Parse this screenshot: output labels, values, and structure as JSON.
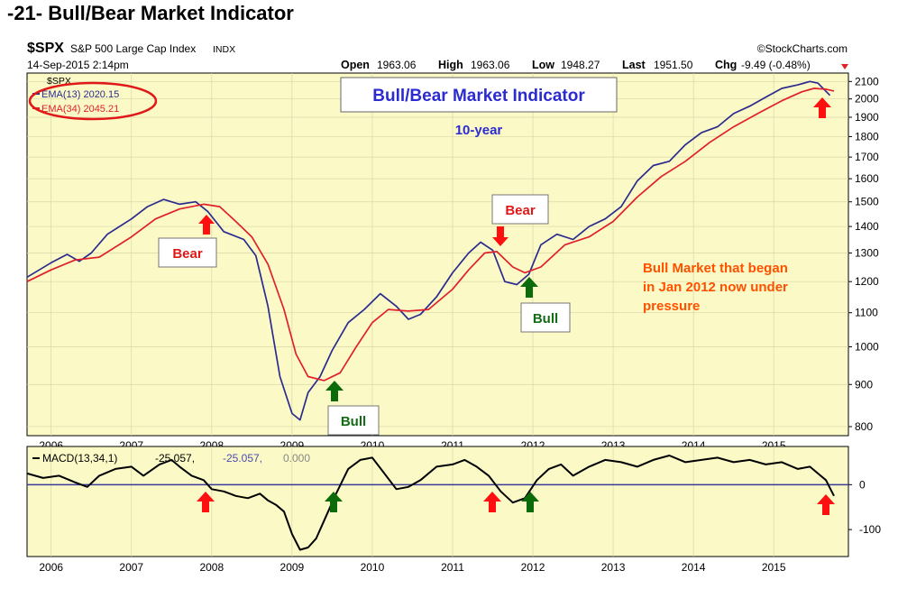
{
  "page_title": "-21- Bull/Bear Market Indicator",
  "header": {
    "symbol": "$SPX",
    "name": "S&P 500 Large Cap Index",
    "exchange": "INDX",
    "date": "14-Sep-2015 2:14pm",
    "brand": "©StockCharts.com",
    "open_label": "Open",
    "open_value": "1963.06",
    "high_label": "High",
    "high_value": "1963.06",
    "low_label": "Low",
    "low_value": "1948.27",
    "last_label": "Last",
    "last_value": "1951.50",
    "chg_label": "Chg",
    "chg_value": "-9.49 (-0.48%)"
  },
  "legend": {
    "symbol": "$SPX",
    "ema13": "EMA(13) 2020.15",
    "ema34": "EMA(34) 2045.21"
  },
  "annotations": {
    "title_box": "Bull/Bear Market Indicator",
    "subtitle": "10-year",
    "bear1": "Bear",
    "bear2": "Bear",
    "bull1": "Bull",
    "bull2": "Bull",
    "note_line1": "Bull Market that began",
    "note_line2": "in Jan 2012 now under",
    "note_line3": "pressure"
  },
  "macd_legend": {
    "label": "MACD(13,34,1)",
    "value1": "-25.057,",
    "value2": "-25.057,",
    "value3": "0.000"
  },
  "colors": {
    "panel_bg": "#fbfac7",
    "ema13": "#2b2b8f",
    "ema34": "#e0202a",
    "macd": "#000000",
    "zero_line": "#3a3a9a",
    "title_box_text": "#2b2bd0",
    "bear_text": "#e01818",
    "bull_text": "#136b13",
    "note_text": "#ff5000",
    "up_arrow_red": "#ff1010",
    "up_arrow_green": "#0b6b0b"
  },
  "chart_data": [
    {
      "type": "line",
      "scale": "log",
      "ylim": [
        780,
        2150
      ],
      "yticks": [
        800,
        900,
        1000,
        1100,
        1200,
        1300,
        1400,
        1500,
        1600,
        1700,
        1800,
        1900,
        2000,
        2100
      ],
      "xticks": [
        "2006",
        "2007",
        "2008",
        "2009",
        "2010",
        "2011",
        "2012",
        "2013",
        "2014",
        "2015"
      ],
      "series": [
        {
          "name": "EMA(13)",
          "x": [
            2005.7,
            2006.0,
            2006.2,
            2006.35,
            2006.5,
            2006.7,
            2007.0,
            2007.2,
            2007.4,
            2007.6,
            2007.8,
            2007.95,
            2008.15,
            2008.4,
            2008.55,
            2008.7,
            2008.85,
            2009.0,
            2009.1,
            2009.2,
            2009.35,
            2009.5,
            2009.7,
            2009.9,
            2010.1,
            2010.3,
            2010.45,
            2010.6,
            2010.8,
            2011.0,
            2011.2,
            2011.35,
            2011.5,
            2011.65,
            2011.8,
            2011.95,
            2012.1,
            2012.3,
            2012.5,
            2012.7,
            2012.9,
            2013.1,
            2013.3,
            2013.5,
            2013.7,
            2013.9,
            2014.1,
            2014.3,
            2014.5,
            2014.7,
            2014.9,
            2015.1,
            2015.3,
            2015.45,
            2015.55,
            2015.7
          ],
          "values": [
            1215,
            1265,
            1295,
            1270,
            1300,
            1370,
            1430,
            1480,
            1510,
            1490,
            1500,
            1460,
            1380,
            1350,
            1290,
            1120,
            920,
            830,
            815,
            880,
            920,
            990,
            1070,
            1110,
            1160,
            1120,
            1080,
            1095,
            1150,
            1230,
            1300,
            1340,
            1310,
            1200,
            1190,
            1225,
            1330,
            1370,
            1350,
            1400,
            1430,
            1480,
            1590,
            1660,
            1680,
            1760,
            1820,
            1850,
            1920,
            1960,
            2010,
            2060,
            2080,
            2100,
            2090,
            2020
          ]
        },
        {
          "name": "EMA(34)",
          "x": [
            2005.7,
            2006.0,
            2006.3,
            2006.6,
            2007.0,
            2007.3,
            2007.6,
            2007.9,
            2008.1,
            2008.3,
            2008.5,
            2008.7,
            2008.9,
            2009.05,
            2009.2,
            2009.4,
            2009.6,
            2009.8,
            2010.0,
            2010.2,
            2010.45,
            2010.7,
            2011.0,
            2011.2,
            2011.4,
            2011.55,
            2011.75,
            2011.9,
            2012.1,
            2012.4,
            2012.7,
            2013.0,
            2013.3,
            2013.6,
            2013.9,
            2014.2,
            2014.5,
            2014.8,
            2015.1,
            2015.35,
            2015.5,
            2015.65,
            2015.75
          ],
          "values": [
            1200,
            1240,
            1275,
            1285,
            1360,
            1430,
            1470,
            1490,
            1480,
            1420,
            1360,
            1260,
            1110,
            980,
            920,
            910,
            930,
            1000,
            1070,
            1110,
            1105,
            1110,
            1175,
            1240,
            1300,
            1305,
            1250,
            1230,
            1250,
            1330,
            1360,
            1420,
            1520,
            1610,
            1680,
            1770,
            1850,
            1920,
            1990,
            2040,
            2060,
            2055,
            2045
          ]
        }
      ]
    },
    {
      "type": "line",
      "name": "MACD(13,34,1)",
      "ylim": [
        -160,
        85
      ],
      "yticks": [
        -100,
        0
      ],
      "xticks": [
        "2006",
        "2007",
        "2008",
        "2009",
        "2010",
        "2011",
        "2012",
        "2013",
        "2014",
        "2015"
      ],
      "x": [
        2005.7,
        2005.9,
        2006.1,
        2006.3,
        2006.45,
        2006.6,
        2006.8,
        2007.0,
        2007.15,
        2007.35,
        2007.5,
        2007.6,
        2007.75,
        2007.9,
        2008.0,
        2008.15,
        2008.3,
        2008.45,
        2008.6,
        2008.7,
        2008.8,
        2008.9,
        2009.0,
        2009.1,
        2009.2,
        2009.3,
        2009.4,
        2009.55,
        2009.7,
        2009.85,
        2010.0,
        2010.15,
        2010.3,
        2010.45,
        2010.6,
        2010.8,
        2011.0,
        2011.15,
        2011.3,
        2011.45,
        2011.6,
        2011.75,
        2011.9,
        2012.05,
        2012.2,
        2012.35,
        2012.5,
        2012.7,
        2012.9,
        2013.1,
        2013.3,
        2013.5,
        2013.7,
        2013.9,
        2014.1,
        2014.3,
        2014.5,
        2014.7,
        2014.9,
        2015.1,
        2015.3,
        2015.45,
        2015.55,
        2015.65,
        2015.75
      ],
      "values": [
        25,
        15,
        20,
        5,
        -5,
        20,
        35,
        40,
        20,
        45,
        55,
        40,
        20,
        10,
        -10,
        -15,
        -25,
        -30,
        -20,
        -35,
        -45,
        -60,
        -110,
        -145,
        -140,
        -120,
        -80,
        -20,
        35,
        55,
        60,
        25,
        -10,
        -5,
        10,
        40,
        45,
        55,
        40,
        20,
        -15,
        -40,
        -30,
        10,
        35,
        45,
        20,
        40,
        55,
        50,
        40,
        55,
        65,
        50,
        55,
        60,
        50,
        55,
        45,
        50,
        35,
        40,
        25,
        10,
        -25
      ]
    }
  ]
}
